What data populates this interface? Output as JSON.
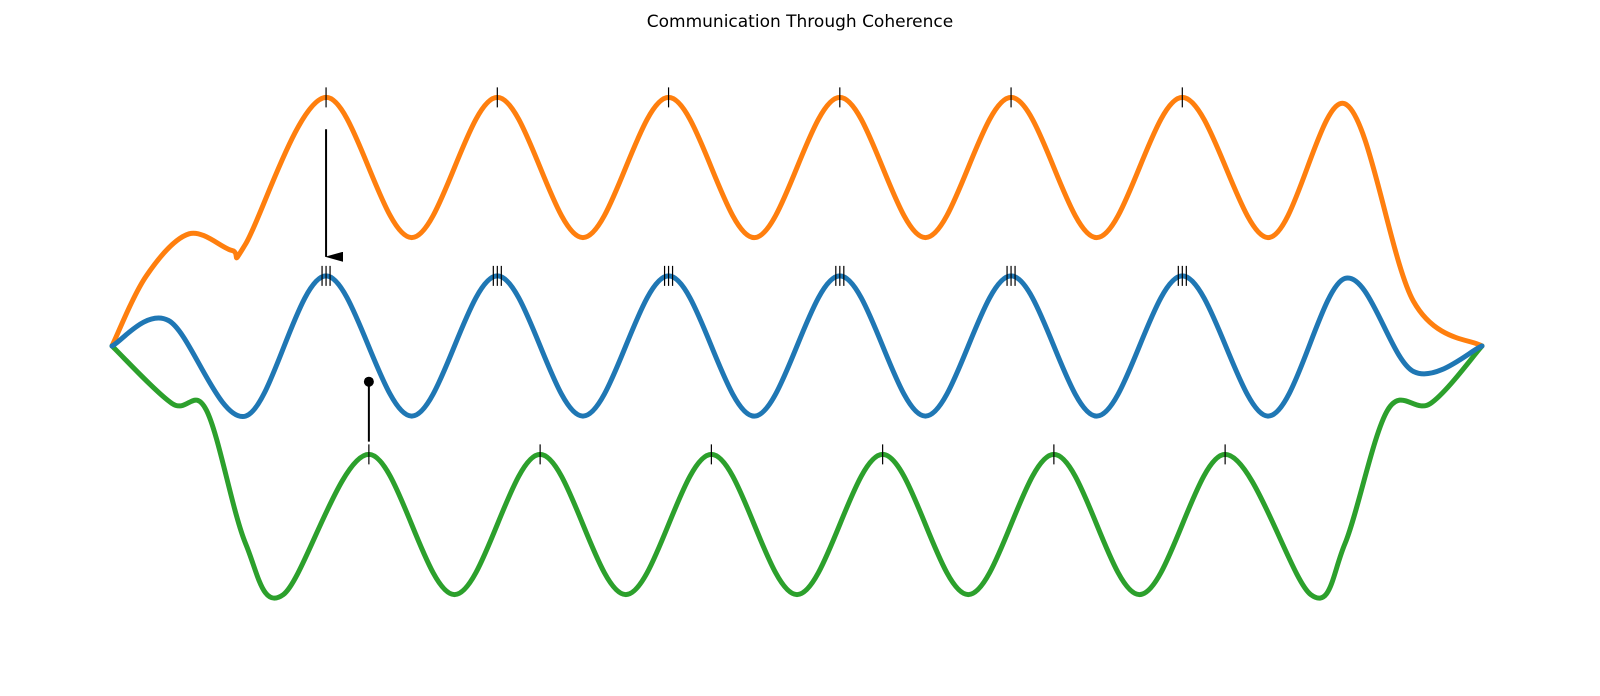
{
  "chart_data": {
    "type": "line",
    "title": "Communication Through Coherence",
    "xlabel": "",
    "ylabel": "",
    "xlim": [
      0,
      8
    ],
    "ylim": [
      -2.4,
      2.4
    ],
    "grid": false,
    "axes_visible": false,
    "series": [
      {
        "color": "#ff7f0e",
        "offset": 1.4,
        "role": "sender",
        "points": [
          [
            0,
            0
          ],
          [
            0.2,
            0.55
          ],
          [
            0.45,
            0.88
          ],
          [
            0.7,
            0.75
          ],
          [
            0.78,
            0.8
          ],
          [
            1.25,
            1.95
          ],
          [
            1.75,
            0.85
          ],
          [
            2.25,
            1.95
          ],
          [
            2.75,
            0.85
          ],
          [
            3.25,
            1.95
          ],
          [
            3.75,
            0.85
          ],
          [
            4.25,
            1.95
          ],
          [
            4.75,
            0.85
          ],
          [
            5.25,
            1.95
          ],
          [
            5.75,
            0.85
          ],
          [
            6.25,
            1.95
          ],
          [
            6.75,
            0.85
          ],
          [
            7.2,
            1.9
          ],
          [
            7.6,
            0.35
          ],
          [
            8,
            0
          ]
        ],
        "peak_marks_x": [
          1.25,
          2.25,
          3.25,
          4.25,
          5.25,
          6.25
        ]
      },
      {
        "color": "#1f77b4",
        "offset": 0,
        "role": "receiver",
        "points": [
          [
            0,
            0
          ],
          [
            0.33,
            0.2
          ],
          [
            0.78,
            -0.55
          ],
          [
            1.25,
            0.55
          ],
          [
            1.75,
            -0.55
          ],
          [
            2.25,
            0.55
          ],
          [
            2.75,
            -0.55
          ],
          [
            3.25,
            0.55
          ],
          [
            3.75,
            -0.55
          ],
          [
            4.25,
            0.55
          ],
          [
            4.75,
            -0.55
          ],
          [
            5.25,
            0.55
          ],
          [
            5.75,
            -0.55
          ],
          [
            6.25,
            0.55
          ],
          [
            6.75,
            -0.55
          ],
          [
            7.2,
            0.53
          ],
          [
            7.6,
            -0.2
          ],
          [
            8,
            0
          ]
        ],
        "peak_marks_x": [
          1.25,
          2.25,
          3.25,
          4.25,
          5.25,
          6.25
        ],
        "peak_mark_style": "triple"
      },
      {
        "color": "#2ca02c",
        "offset": -1.4,
        "role": "non-coherent",
        "points": [
          [
            0,
            0
          ],
          [
            0.35,
            -0.45
          ],
          [
            0.55,
            -0.5
          ],
          [
            0.78,
            -1.55
          ],
          [
            1.0,
            -1.95
          ],
          [
            1.5,
            -0.85
          ],
          [
            2.0,
            -1.95
          ],
          [
            2.5,
            -0.85
          ],
          [
            3.0,
            -1.95
          ],
          [
            3.5,
            -0.85
          ],
          [
            4.0,
            -1.95
          ],
          [
            4.5,
            -0.85
          ],
          [
            5.0,
            -1.95
          ],
          [
            5.5,
            -0.85
          ],
          [
            6.0,
            -1.95
          ],
          [
            6.5,
            -0.85
          ],
          [
            7.0,
            -1.95
          ],
          [
            7.2,
            -1.55
          ],
          [
            7.45,
            -0.5
          ],
          [
            7.7,
            -0.45
          ],
          [
            8,
            0
          ]
        ],
        "peak_marks_x": [
          1.5,
          2.5,
          3.5,
          4.5,
          5.5,
          6.5
        ]
      }
    ],
    "annotations": [
      {
        "kind": "arrow",
        "x": 1.25,
        "y_from": 1.7,
        "y_to": 0.7,
        "color": "#000000"
      },
      {
        "kind": "blocked_stem",
        "x": 1.5,
        "y_from": -0.75,
        "y_to": -0.28,
        "color": "#000000"
      }
    ]
  }
}
